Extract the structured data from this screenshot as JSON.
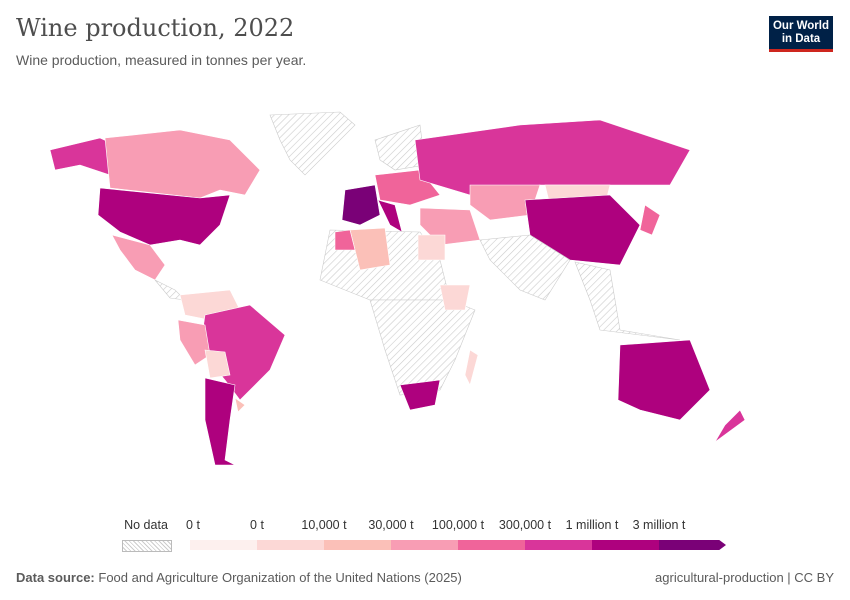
{
  "header": {
    "title": "Wine production, 2022",
    "subtitle": "Wine production, measured in tonnes per year.",
    "logo": "Our World in Data"
  },
  "legend": {
    "no_data_label": "No data",
    "bins": [
      {
        "label": "0 t",
        "color": "#fdf0ee"
      },
      {
        "label": "0 t",
        "color": "#fcd8d6"
      },
      {
        "label": "10,000 t",
        "color": "#fbc0b8"
      },
      {
        "label": "30,000 t",
        "color": "#f89db4"
      },
      {
        "label": "100,000 t",
        "color": "#f0649a"
      },
      {
        "label": "300,000 t",
        "color": "#d9359a"
      },
      {
        "label": "1 million t",
        "color": "#ae017e"
      },
      {
        "label": "3 million t",
        "color": "#7a0177"
      }
    ]
  },
  "footer": {
    "source_label": "Data source:",
    "source": "Food and Agriculture Organization of the United Nations (2025)",
    "right": "agricultural-production | CC BY"
  }
}
